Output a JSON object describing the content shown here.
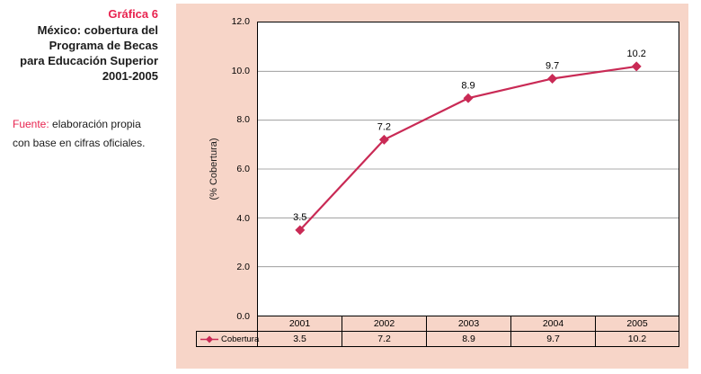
{
  "colors": {
    "accent": "#e8234f",
    "line": "#c92a55",
    "panel_bg": "#f7d5c8",
    "gridline": "#8f8f8f"
  },
  "left_panel": {
    "figure_label": "Gráfica 6",
    "title_lines": [
      "México: cobertura del",
      "Programa de Becas",
      "para Educación Superior",
      "2001-2005"
    ],
    "source_label": "Fuente:",
    "source_rest": " elaboración propia",
    "source_line2": "con base en cifras oficiales."
  },
  "chart_data": {
    "type": "line",
    "title": "México: cobertura del Programa de Becas para Educación Superior 2001-2005",
    "categories": [
      "2001",
      "2002",
      "2003",
      "2004",
      "2005"
    ],
    "series": [
      {
        "name": "Cobertura",
        "values": [
          3.5,
          7.2,
          8.9,
          9.7,
          10.2
        ]
      }
    ],
    "data_labels": [
      "3.5",
      "7.2",
      "8.9",
      "9.7",
      "10.2"
    ],
    "xlabel": "",
    "ylabel": "(% Cobertura)",
    "ylim": [
      0,
      12
    ],
    "ytick_step": 2,
    "ytick_labels": [
      "0.0",
      "2.0",
      "4.0",
      "6.0",
      "8.0",
      "10.0",
      "12.0"
    ],
    "grid": true,
    "legend_position": "bottom-table",
    "marker": "diamond"
  }
}
